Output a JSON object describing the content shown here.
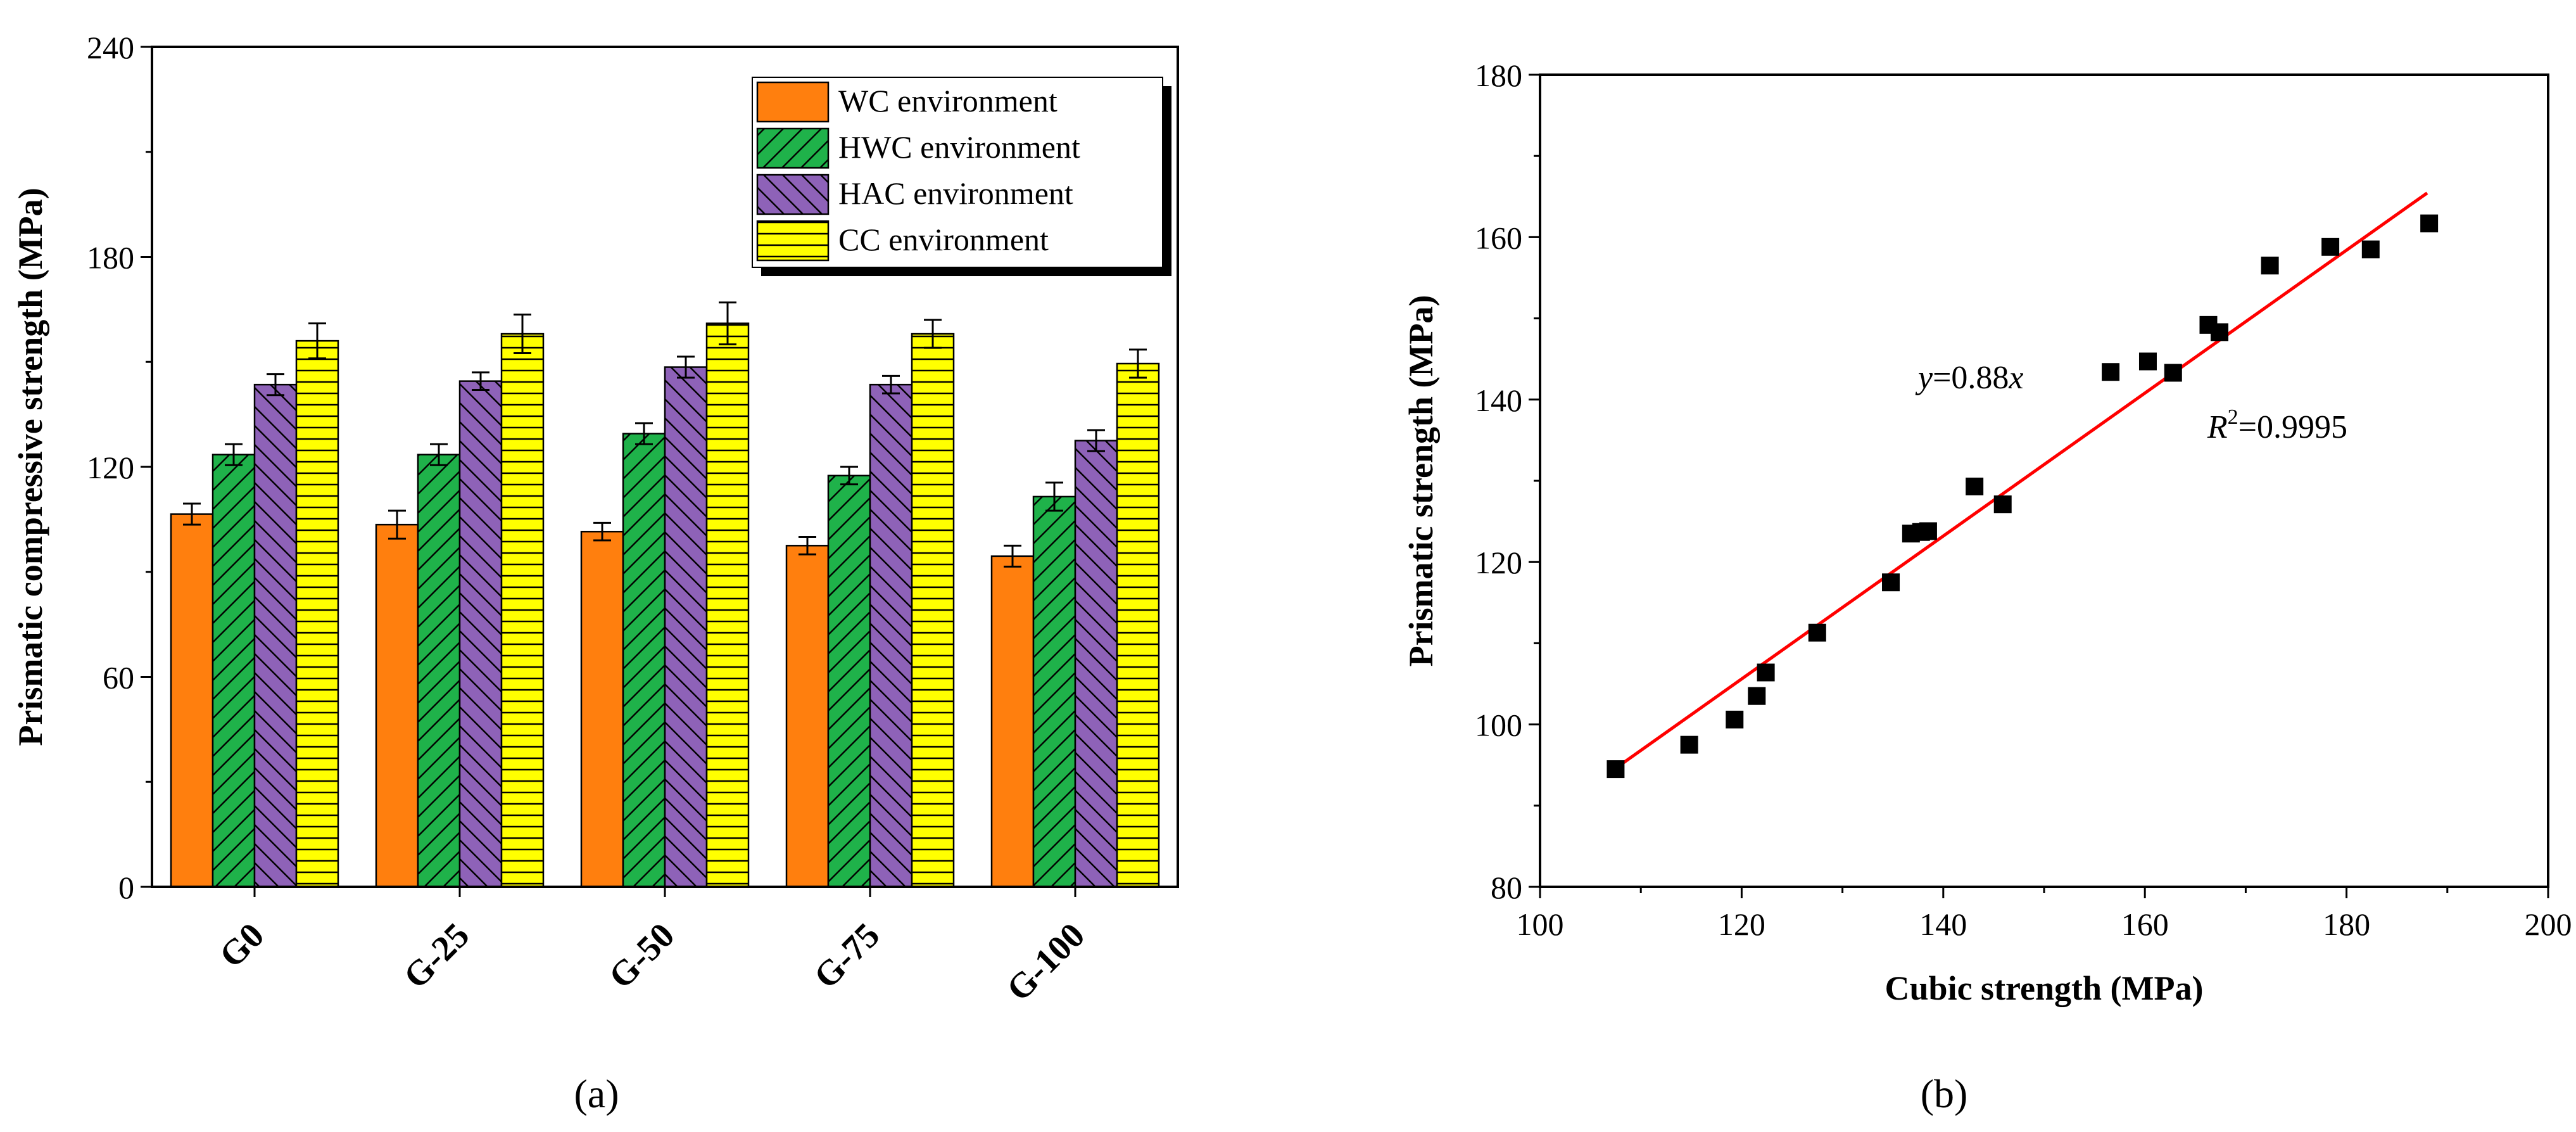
{
  "panels": {
    "a_label": "(a)",
    "b_label": "(b)"
  },
  "chart_data": [
    {
      "type": "bar",
      "title": "",
      "xlabel": "",
      "ylabel": "Prismatic compressive strength (MPa)",
      "ylim": [
        0,
        240
      ],
      "yticks": [
        0,
        60,
        120,
        180,
        240
      ],
      "categories": [
        "G0",
        "G-25",
        "G-50",
        "G-75",
        "G-100"
      ],
      "legend_position": "top-right",
      "series": [
        {
          "name": "WC environment",
          "color": "#ff7f0e",
          "pattern": "solid",
          "values": [
            106.5,
            103.5,
            101.5,
            97.5,
            94.5
          ],
          "errors": [
            3,
            4,
            2.5,
            2.5,
            3
          ]
        },
        {
          "name": "HWC environment",
          "color": "#1fb24a",
          "pattern": "diag-forward",
          "values": [
            123.5,
            123.5,
            129.5,
            117.5,
            111.5
          ],
          "errors": [
            3,
            3,
            3,
            2.5,
            4
          ]
        },
        {
          "name": "HAC environment",
          "color": "#8e62b8",
          "pattern": "diag-back",
          "values": [
            143.5,
            144.5,
            148.5,
            143.5,
            127.5
          ],
          "errors": [
            3,
            2.5,
            3,
            2.5,
            3
          ]
        },
        {
          "name": "CC environment",
          "color": "#ffff00",
          "pattern": "horizontal",
          "values": [
            156,
            158,
            161,
            158,
            149.5
          ],
          "errors": [
            5,
            5.5,
            6,
            4,
            4
          ]
        }
      ]
    },
    {
      "type": "scatter",
      "title": "",
      "xlabel": "Cubic strength (MPa)",
      "ylabel": "Prismatic strength (MPa)",
      "xlim": [
        100,
        200
      ],
      "ylim": [
        80,
        180
      ],
      "xticks": [
        100,
        120,
        140,
        160,
        180,
        200
      ],
      "yticks": [
        80,
        100,
        120,
        140,
        160,
        180
      ],
      "marker_color": "#000000",
      "fit_color": "#ff0000",
      "fit": {
        "slope": 0.88,
        "x_range": [
          107.5,
          188
        ]
      },
      "annotations": {
        "equation": {
          "pre": "y",
          "text": "=0.88",
          "post": "x"
        },
        "r2": {
          "pre": "R",
          "sup": "2",
          "text": "=0.9995"
        }
      },
      "points": [
        [
          107.5,
          94.5
        ],
        [
          114.8,
          97.5
        ],
        [
          119.3,
          100.6
        ],
        [
          121.5,
          103.5
        ],
        [
          122.4,
          106.4
        ],
        [
          127.5,
          111.3
        ],
        [
          134.8,
          117.5
        ],
        [
          136.8,
          123.5
        ],
        [
          137.8,
          123.7
        ],
        [
          138.5,
          123.8
        ],
        [
          143.1,
          129.3
        ],
        [
          145.9,
          127.1
        ],
        [
          156.6,
          143.4
        ],
        [
          160.3,
          144.7
        ],
        [
          162.8,
          143.3
        ],
        [
          166.3,
          149.2
        ],
        [
          167.4,
          148.3
        ],
        [
          172.4,
          156.5
        ],
        [
          178.4,
          158.8
        ],
        [
          182.4,
          158.5
        ],
        [
          188.2,
          161.7
        ]
      ]
    }
  ]
}
